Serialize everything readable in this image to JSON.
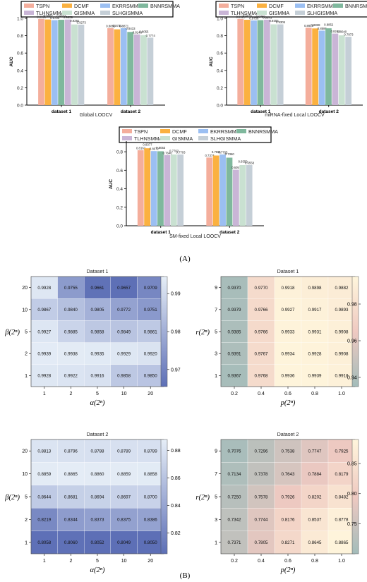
{
  "panel_labels": [
    "(A)",
    "(B)"
  ],
  "colors": {
    "TSPN": "#f4ae9c",
    "DCMF": "#fbb140",
    "EKRRSMMA": "#9bbff2",
    "BNNRSMMA": "#7fb89d",
    "TLHNSMMA": "#c9b5d6",
    "GISMMA": "#c9e1d1",
    "SLHGISMMA": "#c5cfd7",
    "heat_blue_low": "#5d6fb6",
    "heat_blue_high": "#e6eef7",
    "heat_warm_low": "#a3bcba",
    "heat_warm_mid": "#efc9c1",
    "heat_warm_high": "#fff6dc"
  },
  "chart_data": [
    {
      "type": "bar",
      "title": "Global LOOCV",
      "ylabel": "AUC",
      "ylim": [
        0,
        1.0
      ],
      "yticks": [
        "0.0",
        "0.2",
        "0.4",
        "0.6",
        "0.8",
        "1.0"
      ],
      "categories": [
        "dataset 1",
        "dataset 2"
      ],
      "legend_placement": "top",
      "series": [
        {
          "name": "TSPN",
          "values": [
            0.9936,
            0.8865
          ]
        },
        {
          "name": "DCMF",
          "values": [
            0.9867,
            0.8731
          ]
        },
        {
          "name": "EKRRSMMA",
          "values": [
            0.979,
            0.8871
          ]
        },
        {
          "name": "BNNRSMMA",
          "values": [
            0.9833,
            0.8433
          ]
        },
        {
          "name": "TLHNSMMA",
          "values": [
            0.9859,
            0.8148
          ]
        },
        {
          "name": "GISMMA",
          "values": [
            0.9291,
            0.8055
          ]
        },
        {
          "name": "SLHGISMMA",
          "values": [
            0.9273,
            0.7774
          ]
        }
      ],
      "data_labels": [
        [
          "0.9936",
          "0.9867",
          "0.9790",
          "0.9833",
          "0.9859",
          "0.9291",
          "0.9273"
        ],
        [
          "0.8865",
          "0.8731",
          "0.8871",
          "0.8433",
          "0.8148",
          "0.8055",
          "0.7774"
        ]
      ]
    },
    {
      "type": "bar",
      "title": "miRNA-fixed Local LOOCV",
      "ylabel": "AUC",
      "ylim": [
        0,
        1.0
      ],
      "yticks": [
        "0.0",
        "0.2",
        "0.4",
        "0.6",
        "0.8",
        "1.0"
      ],
      "categories": [
        "dataset 1",
        "dataset 2"
      ],
      "legend_placement": "top",
      "series": [
        {
          "name": "TSPN",
          "values": [
            0.9929,
            0.8915
          ]
        },
        {
          "name": "DCMF",
          "values": [
            0.9835,
            0.8838
          ]
        },
        {
          "name": "EKRRSMMA",
          "values": [
            0.9756,
            0.8586
          ]
        },
        {
          "name": "BNNRSMMA",
          "values": [
            0.9789,
            0.8852
          ]
        },
        {
          "name": "TLHNSMMA",
          "values": [
            0.9843,
            0.8244
          ]
        },
        {
          "name": "GISMMA",
          "values": [
            0.9305,
            0.804
          ]
        },
        {
          "name": "SLHGISMMA",
          "values": [
            0.9305,
            0.7873
          ]
        }
      ],
      "data_labels": [
        [
          "0.9929",
          "0.9835",
          "0.9756",
          "0.9789",
          "0.9843",
          "0.9305",
          "0.9305"
        ],
        [
          "0.8915",
          "0.8838",
          "0.8586",
          "0.8852",
          "0.8244",
          "0.8040",
          "0.7873"
        ]
      ]
    },
    {
      "type": "bar",
      "title": "SM-fixed Local LOOCV",
      "ylabel": "AUC",
      "ylim": [
        0,
        0.9
      ],
      "yticks": [
        "0.0",
        "0.2",
        "0.4",
        "0.6",
        "0.8"
      ],
      "categories": [
        "dataset 1",
        "dataset 2"
      ],
      "legend_placement": "top",
      "series": [
        {
          "name": "TSPN",
          "values": [
            0.8162,
            0.7374
          ]
        },
        {
          "name": "DCMF",
          "values": [
            0.8377,
            0.7591
          ]
        },
        {
          "name": "EKRRSMMA",
          "values": [
            0.8072,
            0.7705
          ]
        },
        {
          "name": "BNNRSMMA",
          "values": [
            0.8053,
            0.736
          ]
        },
        {
          "name": "TLHNSMMA",
          "values": [
            0.764,
            0.6057
          ]
        },
        {
          "name": "GISMMA",
          "values": [
            0.7702,
            0.6559
          ]
        },
        {
          "name": "SLHGISMMA",
          "values": [
            0.7703,
            0.6558
          ]
        }
      ],
      "data_labels": [
        [
          "0.8162",
          "0.8377",
          "0.8072",
          "0.8053",
          "0.7640",
          "0.7702",
          "0.7703"
        ],
        [
          "0.7374",
          "0.7591",
          "0.7705",
          "0.7360",
          "0.6057",
          "0.6559",
          "0.6558"
        ]
      ]
    },
    {
      "type": "heatmap",
      "title": "Dataset 1",
      "xlabel": "α(2ⁿ)",
      "ylabel": "β(2ⁿ)",
      "x": [
        "1",
        "2",
        "5",
        "10",
        "20"
      ],
      "y": [
        "20",
        "10",
        "5",
        "2",
        "1"
      ],
      "values": [
        [
          0.9928,
          0.9755,
          0.9661,
          0.9657,
          0.9709
        ],
        [
          0.9867,
          0.984,
          0.9805,
          0.9772,
          0.9751
        ],
        [
          0.9927,
          0.9885,
          0.9858,
          0.9849,
          0.9861
        ],
        [
          0.9939,
          0.9938,
          0.9935,
          0.9929,
          0.992
        ],
        [
          0.9928,
          0.9922,
          0.9916,
          0.9858,
          0.985
        ]
      ],
      "value_labels": [
        [
          "0.9928",
          "0.9755",
          "0.9661",
          "0.9657",
          "0.9709"
        ],
        [
          "0.9867",
          "0.9840",
          "0.9805",
          "0.9772",
          "0.9751"
        ],
        [
          "0.9927",
          "0.9885",
          "0.9858",
          "0.9849",
          "0.9861"
        ],
        [
          "0.9939",
          "0.9938",
          "0.9935",
          "0.9929",
          "0.9920"
        ],
        [
          "0.9928",
          "0.9922",
          "0.9916",
          "0.9858",
          "0.9850"
        ]
      ],
      "colorbar_range": [
        0.9655,
        0.9945
      ],
      "colorbar_ticks": [
        0.97,
        0.98,
        0.99
      ],
      "colorbar_labels": [
        "0.97",
        "0.98",
        "0.99"
      ],
      "colormap": "blue"
    },
    {
      "type": "heatmap",
      "title": "Dataset 1",
      "xlabel": "p(2ⁿ)",
      "ylabel": "r(2ⁿ)",
      "x": [
        "0.2",
        "0.4",
        "0.6",
        "0.8",
        "1.0"
      ],
      "y": [
        "9",
        "7",
        "5",
        "3",
        "1"
      ],
      "values": [
        [
          0.937,
          0.977,
          0.9918,
          0.9898,
          0.9882
        ],
        [
          0.9379,
          0.9766,
          0.9927,
          0.9917,
          0.9893
        ],
        [
          0.9385,
          0.9766,
          0.9933,
          0.9931,
          0.9908
        ],
        [
          0.9391,
          0.9767,
          0.9934,
          0.9928,
          0.9908
        ],
        [
          0.9367,
          0.9768,
          0.9936,
          0.9939,
          0.9918
        ]
      ],
      "value_labels": [
        [
          "0.9370",
          "0.9770",
          "0.9918",
          "0.9898",
          "0.9882"
        ],
        [
          "0.9379",
          "0.9766",
          "0.9927",
          "0.9917",
          "0.9893"
        ],
        [
          "0.9385",
          "0.9766",
          "0.9933",
          "0.9931",
          "0.9908"
        ],
        [
          "0.9391",
          "0.9767",
          "0.9934",
          "0.9928",
          "0.9908"
        ],
        [
          "0.9367",
          "0.9768",
          "0.9936",
          "0.9939",
          "0.9918"
        ]
      ],
      "colorbar_range": [
        0.935,
        0.995
      ],
      "colorbar_ticks": [
        0.94,
        0.96,
        0.98
      ],
      "colorbar_labels": [
        "0.94",
        "0.96",
        "0.98"
      ],
      "colormap": "warm"
    },
    {
      "type": "heatmap",
      "title": "Dataset 2",
      "xlabel": "α(2ⁿ)",
      "ylabel": "β(2ⁿ)",
      "x": [
        "1",
        "2",
        "5",
        "10",
        "20"
      ],
      "y": [
        "20",
        "10",
        "5",
        "2",
        "1"
      ],
      "values": [
        [
          0.8813,
          0.8796,
          0.8788,
          0.8789,
          0.8789
        ],
        [
          0.8859,
          0.8865,
          0.886,
          0.8859,
          0.8858
        ],
        [
          0.8644,
          0.8681,
          0.8694,
          0.8697,
          0.87
        ],
        [
          0.8219,
          0.8344,
          0.8373,
          0.8375,
          0.8386
        ],
        [
          0.8058,
          0.806,
          0.8052,
          0.8049,
          0.805
        ]
      ],
      "value_labels": [
        [
          "0.8813",
          "0.8796",
          "0.8788",
          "0.8789",
          "0.8789"
        ],
        [
          "0.8859",
          "0.8865",
          "0.8860",
          "0.8859",
          "0.8858"
        ],
        [
          "0.8644",
          "0.8681",
          "0.8694",
          "0.8697",
          "0.8700"
        ],
        [
          "0.8219",
          "0.8344",
          "0.8373",
          "0.8375",
          "0.8386"
        ],
        [
          "0.8058",
          "0.8060",
          "0.8052",
          "0.8049",
          "0.8050"
        ]
      ],
      "colorbar_range": [
        0.805,
        0.888
      ],
      "colorbar_ticks": [
        0.82,
        0.84,
        0.86,
        0.88
      ],
      "colorbar_labels": [
        "0.82",
        "0.84",
        "0.86",
        "0.88"
      ],
      "colormap": "blue"
    },
    {
      "type": "heatmap",
      "title": "Dataset 2",
      "xlabel": "p(2ⁿ)",
      "ylabel": "r(2ⁿ)",
      "x": [
        "0.2",
        "0.4",
        "0.6",
        "0.8",
        "1.0"
      ],
      "y": [
        "9",
        "7",
        "5",
        "3",
        "1"
      ],
      "values": [
        [
          0.7076,
          0.7296,
          0.7538,
          0.7747,
          0.7925
        ],
        [
          0.7134,
          0.7378,
          0.7643,
          0.7884,
          0.8179
        ],
        [
          0.725,
          0.7578,
          0.7926,
          0.8202,
          0.8482
        ],
        [
          0.7342,
          0.7744,
          0.8176,
          0.8537,
          0.8778
        ],
        [
          0.7371,
          0.7805,
          0.8271,
          0.8645,
          0.8865
        ]
      ],
      "value_labels": [
        [
          "0.7076",
          "0.7296",
          "0.7538",
          "0.7747",
          "0.7925"
        ],
        [
          "0.7134",
          "0.7378",
          "0.7643",
          "0.7884",
          "0.8179"
        ],
        [
          "0.7250",
          "0.7578",
          "0.7926",
          "0.8202",
          "0.8482"
        ],
        [
          "0.7342",
          "0.7744",
          "0.8176",
          "0.8537",
          "0.8778"
        ],
        [
          "0.7371",
          "0.7805",
          "0.8271",
          "0.8645",
          "0.8865"
        ]
      ],
      "colorbar_range": [
        0.7,
        0.89
      ],
      "colorbar_ticks": [
        0.75,
        0.8,
        0.85
      ],
      "colorbar_labels": [
        "0.75",
        "0.80",
        "0.85"
      ],
      "colormap": "warm"
    }
  ]
}
